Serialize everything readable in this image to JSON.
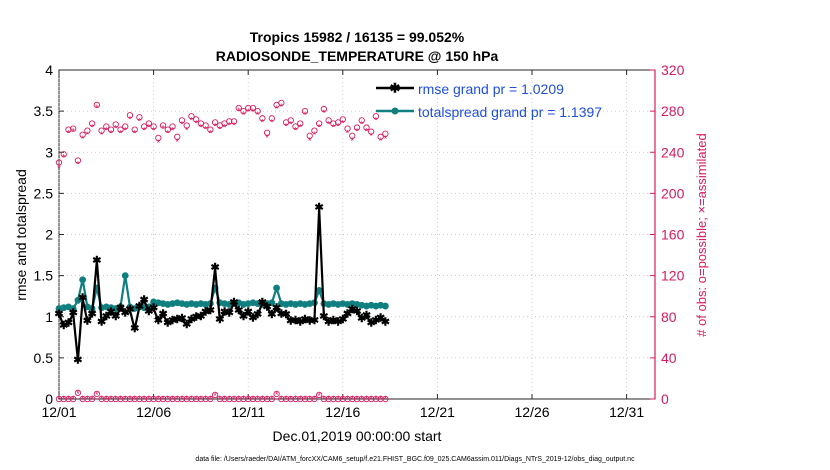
{
  "chart_data": {
    "type": "line",
    "title_line1": "Tropics 15982 / 16135 = 99.052%",
    "title_line2": "RADIOSONDE_TEMPERATURE @ 150 hPa",
    "xlabel": "Dec.01,2019 00:00:00 start",
    "ylabel_left": "rmse and totalspread",
    "ylabel_right": "# of obs: o=possible; ×=assimilated",
    "footer": "data file: /Users/raeder/DAI/ATM_forcXX/CAM6_setup/f.e21.FHIST_BGC.f09_025.CAM6assim.011/Diags_NTrS_2019-12/obs_diag_output.nc",
    "xlim": [
      0,
      31.5
    ],
    "ylim_left": [
      0,
      4
    ],
    "ylim_right": [
      0,
      320
    ],
    "x_ticks": [
      0,
      5,
      10,
      15,
      20,
      25,
      30
    ],
    "x_tick_labels": [
      "12/01",
      "12/06",
      "12/11",
      "12/16",
      "12/21",
      "12/26",
      "12/31"
    ],
    "y_ticks_left": [
      0,
      0.5,
      1,
      1.5,
      2,
      2.5,
      3,
      3.5,
      4
    ],
    "y_tick_labels_left": [
      "0",
      "0.5",
      "1",
      "1.5",
      "2",
      "2.5",
      "3",
      "3.5",
      "4"
    ],
    "y_ticks_right": [
      0,
      40,
      80,
      120,
      160,
      200,
      240,
      280,
      320
    ],
    "y_tick_labels_right": [
      "0",
      "40",
      "80",
      "120",
      "160",
      "200",
      "240",
      "280",
      "320"
    ],
    "x_start": 0,
    "x_step": 0.25,
    "legend": [
      "rmse grand pr = 1.0209",
      "totalspread grand pr = 1.1397"
    ],
    "legend_location": "top-right",
    "colors": {
      "rmse": "#000000",
      "spread": "#0f7f7f",
      "obs": "#d81b60",
      "legend_text": "#1f4fd8",
      "axis": "#262626"
    },
    "series": [
      {
        "name": "rmse",
        "values": [
          1.03,
          0.89,
          0.92,
          1.04,
          0.47,
          1.22,
          0.94,
          1.03,
          1.68,
          0.93,
          1.0,
          1.05,
          1.0,
          1.1,
          1.04,
          1.08,
          0.85,
          1.12,
          1.2,
          1.06,
          1.1,
          0.95,
          1.03,
          0.92,
          0.95,
          0.96,
          0.97,
          0.9,
          0.96,
          0.99,
          1.0,
          1.05,
          1.07,
          1.59,
          0.96,
          1.05,
          1.04,
          1.17,
          1.07,
          1.0,
          1.05,
          0.98,
          1.02,
          1.17,
          1.11,
          1.02,
          1.1,
          1.03,
          1.02,
          0.94,
          0.95,
          0.93,
          0.96,
          0.94,
          0.95,
          2.32,
          1.0,
          0.93,
          0.95,
          0.93,
          0.96,
          1.03,
          1.08,
          1.06,
          0.97,
          1.01,
          0.92,
          0.95,
          0.98,
          0.93
        ]
      },
      {
        "name": "totalspread",
        "values": [
          1.1,
          1.11,
          1.12,
          1.1,
          1.2,
          1.45,
          1.12,
          1.1,
          1.35,
          1.11,
          1.12,
          1.11,
          1.1,
          1.12,
          1.5,
          1.12,
          1.1,
          1.12,
          1.11,
          1.12,
          1.18,
          1.17,
          1.16,
          1.15,
          1.16,
          1.17,
          1.16,
          1.15,
          1.16,
          1.15,
          1.16,
          1.15,
          1.16,
          1.35,
          1.17,
          1.16,
          1.15,
          1.16,
          1.17,
          1.15,
          1.16,
          1.17,
          1.16,
          1.15,
          1.16,
          1.17,
          1.35,
          1.16,
          1.15,
          1.16,
          1.15,
          1.16,
          1.15,
          1.16,
          1.17,
          1.32,
          1.16,
          1.15,
          1.16,
          1.15,
          1.16,
          1.15,
          1.16,
          1.15,
          1.14,
          1.13,
          1.14,
          1.13,
          1.14,
          1.13
        ]
      },
      {
        "name": "obs_possible",
        "values": [
          230,
          238,
          262,
          263,
          232,
          257,
          261,
          268,
          286,
          261,
          265,
          262,
          267,
          262,
          265,
          276,
          262,
          274,
          265,
          268,
          265,
          254,
          266,
          262,
          265,
          255,
          271,
          266,
          275,
          272,
          268,
          266,
          262,
          269,
          266,
          268,
          270,
          270,
          283,
          280,
          283,
          283,
          280,
          273,
          259,
          273,
          286,
          288,
          269,
          271,
          265,
          268,
          280,
          256,
          261,
          268,
          282,
          271,
          268,
          269,
          272,
          263,
          256,
          264,
          271,
          264,
          260,
          275,
          255,
          258
        ]
      },
      {
        "name": "obs_assimilated",
        "values": [
          224,
          235,
          258,
          260,
          228,
          253,
          257,
          264,
          283,
          257,
          261,
          258,
          263,
          258,
          261,
          272,
          258,
          270,
          261,
          264,
          261,
          249,
          263,
          258,
          261,
          250,
          267,
          261,
          271,
          268,
          264,
          262,
          258,
          265,
          262,
          264,
          266,
          266,
          280,
          276,
          279,
          279,
          276,
          269,
          254,
          269,
          282,
          284,
          265,
          267,
          261,
          264,
          276,
          251,
          257,
          264,
          278,
          267,
          264,
          265,
          268,
          258,
          251,
          260,
          267,
          260,
          256,
          271,
          251,
          253
        ]
      },
      {
        "name": "obs_possible_low",
        "values": [
          0,
          0,
          0,
          0,
          6,
          0,
          0,
          0,
          5,
          0,
          0,
          0,
          0,
          0,
          0,
          0,
          0,
          0,
          0,
          0,
          0,
          0,
          0,
          0,
          0,
          0,
          0,
          0,
          0,
          0,
          0,
          0,
          0,
          4,
          0,
          0,
          0,
          0,
          0,
          0,
          0,
          0,
          0,
          0,
          0,
          0,
          5,
          0,
          0,
          0,
          0,
          0,
          0,
          0,
          0,
          4,
          0,
          0,
          0,
          0,
          0,
          0,
          0,
          0,
          0,
          0,
          0,
          0,
          0,
          0
        ]
      },
      {
        "name": "obs_assimilated_low",
        "values": [
          0,
          0,
          0,
          0,
          5,
          0,
          0,
          0,
          4,
          0,
          0,
          0,
          0,
          0,
          0,
          0,
          0,
          0,
          0,
          0,
          0,
          0,
          0,
          0,
          0,
          0,
          0,
          0,
          0,
          0,
          0,
          0,
          0,
          3,
          0,
          0,
          0,
          0,
          0,
          0,
          0,
          0,
          0,
          0,
          0,
          0,
          4,
          0,
          0,
          0,
          0,
          0,
          0,
          0,
          0,
          3,
          0,
          0,
          0,
          0,
          0,
          0,
          0,
          0,
          0,
          0,
          0,
          0,
          0,
          0
        ]
      }
    ]
  }
}
